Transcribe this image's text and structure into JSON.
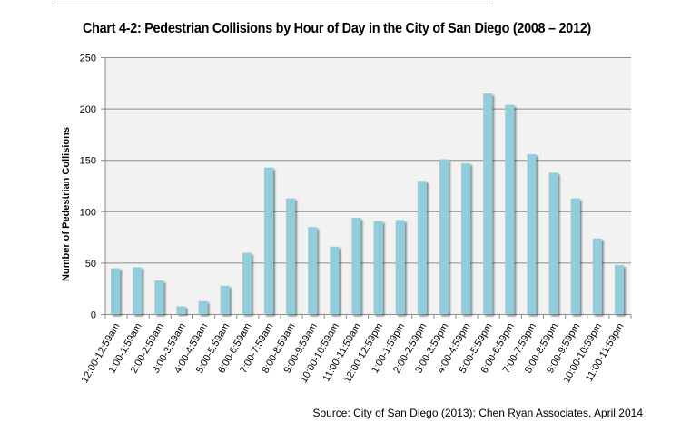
{
  "header": {
    "title": "Chart 4-2:  Pedestrian Collisions by Hour of Day in the City of San Diego (2008 – 2012)"
  },
  "footer": {
    "source": "Source: City of San Diego (2013); Chen Ryan Associates, April 2014"
  },
  "chart_data": {
    "type": "bar",
    "title": "Chart 4-2:  Pedestrian Collisions by Hour of Day in the City of San Diego (2008 – 2012)",
    "xlabel": "",
    "ylabel": "Number of Pedestrian Collisions",
    "ylim": [
      0,
      250
    ],
    "yticks": [
      0,
      50,
      100,
      150,
      200,
      250
    ],
    "grid": true,
    "bar_color": "#92CDDC",
    "plot_background": "#F2F2F2",
    "categories": [
      "12:00-12:59am",
      "1:00-1:59am",
      "2:00-2:59am",
      "3:00-3:59am",
      "4:00-4:59am",
      "5:00-5:59am",
      "6:00-6:59am",
      "7:00-7:59am",
      "8:00-8:59am",
      "9:00-9:59am",
      "10:00-10:59am",
      "11:00-11:59am",
      "12:00-12:59pm",
      "1:00-1:59pm",
      "2:00-2:59pm",
      "3:00-3:59pm",
      "4:00-4:59pm",
      "5:00-5:59pm",
      "6:00-6:59pm",
      "7:00-7:59pm",
      "8:00-8:59pm",
      "9:00-9:59pm",
      "10:00-10:59pm",
      "11:00-11:59pm"
    ],
    "values": [
      45,
      46,
      33,
      8,
      13,
      28,
      60,
      143,
      113,
      85,
      66,
      94,
      91,
      92,
      130,
      151,
      147,
      215,
      204,
      156,
      138,
      113,
      74,
      48
    ]
  }
}
